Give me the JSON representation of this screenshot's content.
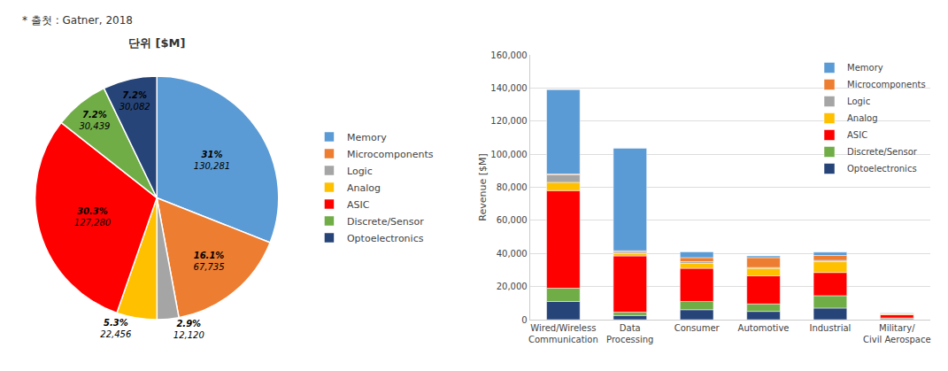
{
  "chart_data": [
    {
      "type": "pie",
      "title": "단위 [$M]",
      "annotations": [
        "* 출첫 : Gatner, 2018"
      ],
      "labels": [
        "Memory",
        "Microcomponents",
        "Logic",
        "Analog",
        "ASIC",
        "Discrete/Sensor",
        "Optoelectronics"
      ],
      "values": [
        130281,
        67735,
        12120,
        22456,
        127280,
        30439,
        30082
      ],
      "value_labels": [
        "130,281",
        "67,735",
        "12,120",
        "22,456",
        "127,280",
        "30,439",
        "30,082"
      ],
      "percentages": [
        31,
        16.1,
        2.9,
        5.3,
        30.3,
        7.2,
        7.2
      ],
      "percentage_labels": [
        "31%",
        "16.1%",
        "2.9%",
        "5.3%",
        "30.3%",
        "7.2%",
        "7.2%"
      ],
      "colors": [
        "#5B9BD5",
        "#ED7D31",
        "#A5A5A5",
        "#FFC000",
        "#FF0000",
        "#70AD47",
        "#264478"
      ],
      "data_labels": true,
      "legend": "right"
    },
    {
      "type": "bar",
      "stacked": true,
      "categories": [
        "Wired/Wireless\nCommunication",
        "Data\nProcessing",
        "Consumer",
        "Automotive",
        "Industrial",
        "Military/\nCivil Aerospace"
      ],
      "series": [
        {
          "name": "Optoelectronics",
          "color": "#264478",
          "values": [
            11000,
            2500,
            6000,
            5000,
            7000,
            500
          ]
        },
        {
          "name": "Discrete/Sensor",
          "color": "#70AD47",
          "values": [
            8000,
            2000,
            5000,
            4500,
            7500,
            500
          ]
        },
        {
          "name": "ASIC",
          "color": "#FF0000",
          "values": [
            59000,
            34000,
            20000,
            17000,
            14000,
            2000
          ]
        },
        {
          "name": "Analog",
          "color": "#FFC000",
          "values": [
            5000,
            1500,
            3000,
            4500,
            6500,
            350
          ]
        },
        {
          "name": "Logic",
          "color": "#A5A5A5",
          "values": [
            4500,
            800,
            1000,
            500,
            800,
            150
          ]
        },
        {
          "name": "Microcomponents",
          "color": "#ED7D31",
          "values": [
            500,
            800,
            2500,
            6000,
            3000,
            200
          ]
        },
        {
          "name": "Memory",
          "color": "#5B9BD5",
          "values": [
            51000,
            62000,
            3500,
            1000,
            2000,
            300
          ]
        }
      ],
      "ylabel": "Revenue [$M]",
      "ylim": [
        0,
        160000
      ],
      "yticks": [
        0,
        {
          "value": 20000,
          "label": "20,000"
        },
        {
          "value": 40000,
          "label": "40,000"
        },
        {
          "value": 60000,
          "label": "60,000"
        },
        {
          "value": 80000,
          "label": "80,000"
        },
        {
          "value": 100000,
          "label": "100,000"
        },
        {
          "value": 120000,
          "label": "120,000"
        },
        {
          "value": 140000,
          "label": "140,000"
        },
        {
          "value": 160000,
          "label": "160,000"
        }
      ],
      "grid": true,
      "legend": "upper right"
    }
  ]
}
